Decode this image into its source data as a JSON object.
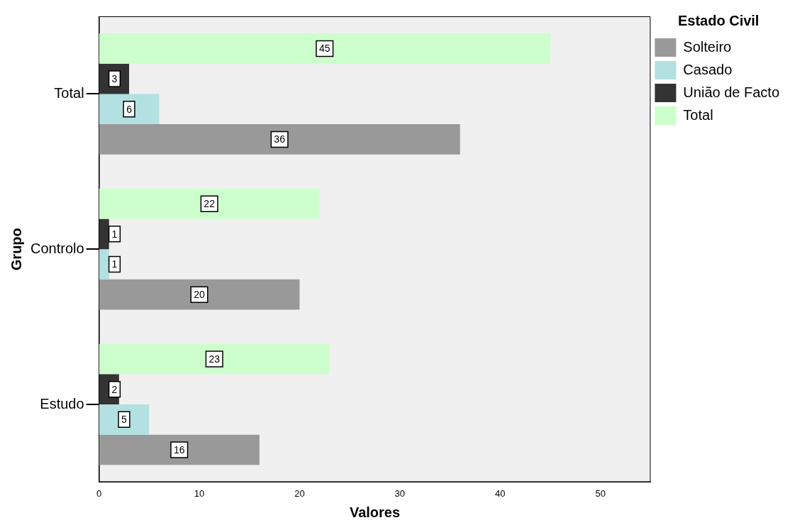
{
  "chart_data": {
    "type": "bar",
    "orientation": "horizontal",
    "xlabel": "Valores",
    "ylabel": "Grupo",
    "legend_title": "Estado Civil",
    "legend": "right",
    "categories": [
      "Total",
      "Controlo",
      "Estudo"
    ],
    "series": [
      {
        "name": "Solteiro",
        "color": "#999999",
        "values": [
          36,
          20,
          16
        ]
      },
      {
        "name": "Casado",
        "color": "#b3e0e0",
        "values": [
          6,
          1,
          5
        ]
      },
      {
        "name": "União de Facto",
        "color": "#333333",
        "values": [
          3,
          1,
          2
        ]
      },
      {
        "name": "Total",
        "color": "#ccffcc",
        "values": [
          45,
          22,
          23
        ]
      }
    ],
    "xlim": [
      0,
      55
    ],
    "xticks": [
      0,
      10,
      20,
      30,
      40,
      50
    ],
    "grid": false,
    "data_labels": true
  }
}
